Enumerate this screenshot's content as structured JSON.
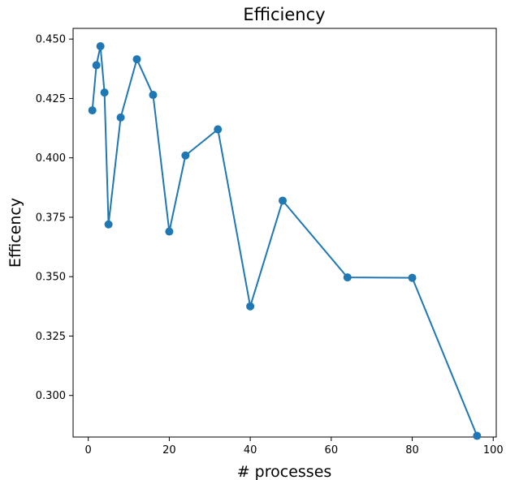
{
  "chart_data": {
    "type": "line",
    "title": "Efficiency",
    "xlabel": "# processes",
    "ylabel": "Efficency",
    "xlim": [
      -3.75,
      100.75
    ],
    "ylim": [
      0.2825,
      0.4545
    ],
    "xticks": [
      0,
      20,
      40,
      60,
      80,
      100
    ],
    "yticks": [
      0.3,
      0.325,
      0.35,
      0.375,
      0.4,
      0.425,
      0.45
    ],
    "xtick_labels": [
      "0",
      "20",
      "40",
      "60",
      "80",
      "100"
    ],
    "ytick_labels": [
      "0.300",
      "0.325",
      "0.350",
      "0.375",
      "0.400",
      "0.425",
      "0.450"
    ],
    "grid": false,
    "series": [
      {
        "color": "#1f77b4",
        "marker": "circle",
        "x": [
          1,
          2,
          3,
          4,
          5,
          8,
          12,
          16,
          20,
          24,
          32,
          40,
          48,
          64,
          80,
          96
        ],
        "y": [
          0.42,
          0.439,
          0.447,
          0.4275,
          0.372,
          0.417,
          0.4415,
          0.4265,
          0.369,
          0.401,
          0.412,
          0.3375,
          0.382,
          0.3497,
          0.3495,
          0.283
        ]
      }
    ]
  }
}
